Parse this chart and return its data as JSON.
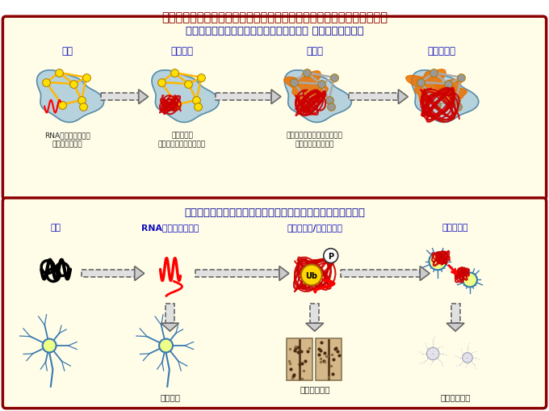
{
  "title": "脳タンパク質老化とミクロ・マクロ神経回路破綻の解明とその関係解明",
  "title_color": "#8B0000",
  "bg_color": "#FFFFFF",
  "panel1_title": "脳タンパク質老化とマクロ神経回路破綻－ 分子機構・可視化",
  "panel1_bg": "#FFFDE8",
  "panel1_border": "#8B0000",
  "panel2_title": "ミクロ神経回路破綻と脳タンパク質老化－分子機構・分子標的",
  "panel2_bg": "#FFFDE8",
  "panel2_border": "#8B0000",
  "panel1_labels": [
    "老化",
    "機能低下",
    "前駆期",
    "認知症発症"
  ],
  "panel1_sublabels": [
    "RNA異常・構造異常\n神経回路異常？",
    "オリゴマー\n神経回路代償機転消失？",
    "アミロイド・複数タンパク質\n脳内神経回路破綻？",
    ""
  ],
  "panel2_top_labels": [
    "正常",
    "RNA変化・構造変化",
    "オリゴマー/アミロイド",
    "伝播・感染"
  ],
  "panel2_bot_labels": [
    "",
    "機能低下",
    "シナプス破綻",
    "神経細胞脱落"
  ],
  "brain_fill": "#7BAFD4",
  "brain_edge": "#5A8FAA",
  "yellow_node": "#FFE000",
  "yellow_edge": "#FFD000",
  "gray_node": "#888888",
  "gray_edge": "#999999",
  "orange_blob": "#E87000",
  "red_tangle": "#CC0000",
  "arrow_face": "#CCCCCC",
  "arrow_edge": "#777777",
  "label_blue": "#1010BB",
  "sub_label": "#222222"
}
